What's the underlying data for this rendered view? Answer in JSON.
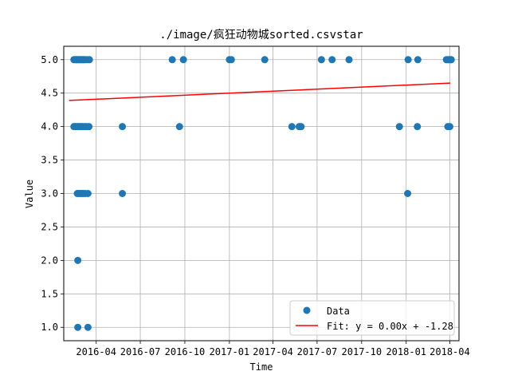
{
  "chart_data": {
    "type": "scatter",
    "title": "./image/疯狂动物城sorted.csvstar",
    "xlabel": "Time",
    "ylabel": "Value",
    "x_ticks": [
      "2016-04",
      "2016-07",
      "2016-10",
      "2017-01",
      "2017-04",
      "2017-07",
      "2017-10",
      "2018-01",
      "2018-04"
    ],
    "y_ticks": [
      "1.0",
      "1.5",
      "2.0",
      "2.5",
      "3.0",
      "3.5",
      "4.0",
      "4.5",
      "5.0"
    ],
    "xlim": [
      "2016-01-25",
      "2018-04-20"
    ],
    "ylim": [
      0.8,
      5.2
    ],
    "grid": true,
    "legend_position": "lower right",
    "series": [
      {
        "name": "Data",
        "kind": "scatter",
        "color": "#1f77b4",
        "points": [
          {
            "x": "2016-02-15",
            "y": 5
          },
          {
            "x": "2016-02-18",
            "y": 5
          },
          {
            "x": "2016-02-20",
            "y": 5
          },
          {
            "x": "2016-02-22",
            "y": 5
          },
          {
            "x": "2016-02-24",
            "y": 5
          },
          {
            "x": "2016-02-26",
            "y": 5
          },
          {
            "x": "2016-02-28",
            "y": 5
          },
          {
            "x": "2016-03-01",
            "y": 5
          },
          {
            "x": "2016-03-03",
            "y": 5
          },
          {
            "x": "2016-03-05",
            "y": 5
          },
          {
            "x": "2016-03-07",
            "y": 5
          },
          {
            "x": "2016-03-10",
            "y": 5
          },
          {
            "x": "2016-03-14",
            "y": 5
          },
          {
            "x": "2016-03-18",
            "y": 5
          },
          {
            "x": "2016-09-05",
            "y": 5
          },
          {
            "x": "2016-09-28",
            "y": 5
          },
          {
            "x": "2017-01-01",
            "y": 5
          },
          {
            "x": "2017-01-05",
            "y": 5
          },
          {
            "x": "2017-03-15",
            "y": 5
          },
          {
            "x": "2017-07-10",
            "y": 5
          },
          {
            "x": "2017-08-01",
            "y": 5
          },
          {
            "x": "2017-09-05",
            "y": 5
          },
          {
            "x": "2018-01-05",
            "y": 5
          },
          {
            "x": "2018-01-25",
            "y": 5
          },
          {
            "x": "2018-03-25",
            "y": 5
          },
          {
            "x": "2018-03-28",
            "y": 5
          },
          {
            "x": "2018-03-31",
            "y": 5
          },
          {
            "x": "2018-04-02",
            "y": 5
          },
          {
            "x": "2018-04-04",
            "y": 5
          },
          {
            "x": "2016-02-15",
            "y": 4
          },
          {
            "x": "2016-02-18",
            "y": 4
          },
          {
            "x": "2016-02-21",
            "y": 4
          },
          {
            "x": "2016-02-24",
            "y": 4
          },
          {
            "x": "2016-02-27",
            "y": 4
          },
          {
            "x": "2016-03-01",
            "y": 4
          },
          {
            "x": "2016-03-04",
            "y": 4
          },
          {
            "x": "2016-03-08",
            "y": 4
          },
          {
            "x": "2016-03-12",
            "y": 4
          },
          {
            "x": "2016-03-17",
            "y": 4
          },
          {
            "x": "2016-05-25",
            "y": 4
          },
          {
            "x": "2016-09-20",
            "y": 4
          },
          {
            "x": "2017-05-10",
            "y": 4
          },
          {
            "x": "2017-05-25",
            "y": 4
          },
          {
            "x": "2017-05-29",
            "y": 4
          },
          {
            "x": "2017-12-18",
            "y": 4
          },
          {
            "x": "2018-01-24",
            "y": 4
          },
          {
            "x": "2018-03-28",
            "y": 4
          },
          {
            "x": "2018-04-01",
            "y": 4
          },
          {
            "x": "2016-02-22",
            "y": 3
          },
          {
            "x": "2016-02-25",
            "y": 3
          },
          {
            "x": "2016-02-28",
            "y": 3
          },
          {
            "x": "2016-03-02",
            "y": 3
          },
          {
            "x": "2016-03-05",
            "y": 3
          },
          {
            "x": "2016-03-09",
            "y": 3
          },
          {
            "x": "2016-03-15",
            "y": 3
          },
          {
            "x": "2016-05-25",
            "y": 3
          },
          {
            "x": "2018-01-04",
            "y": 3
          },
          {
            "x": "2016-02-23",
            "y": 2
          },
          {
            "x": "2016-02-23",
            "y": 1
          },
          {
            "x": "2016-03-15",
            "y": 1
          }
        ]
      },
      {
        "name": "Fit: y = 0.00x + -1.28",
        "kind": "line",
        "color": "#ff0000",
        "points": [
          {
            "x": "2016-02-05",
            "y": 4.39
          },
          {
            "x": "2018-04-02",
            "y": 4.65
          }
        ]
      }
    ]
  }
}
